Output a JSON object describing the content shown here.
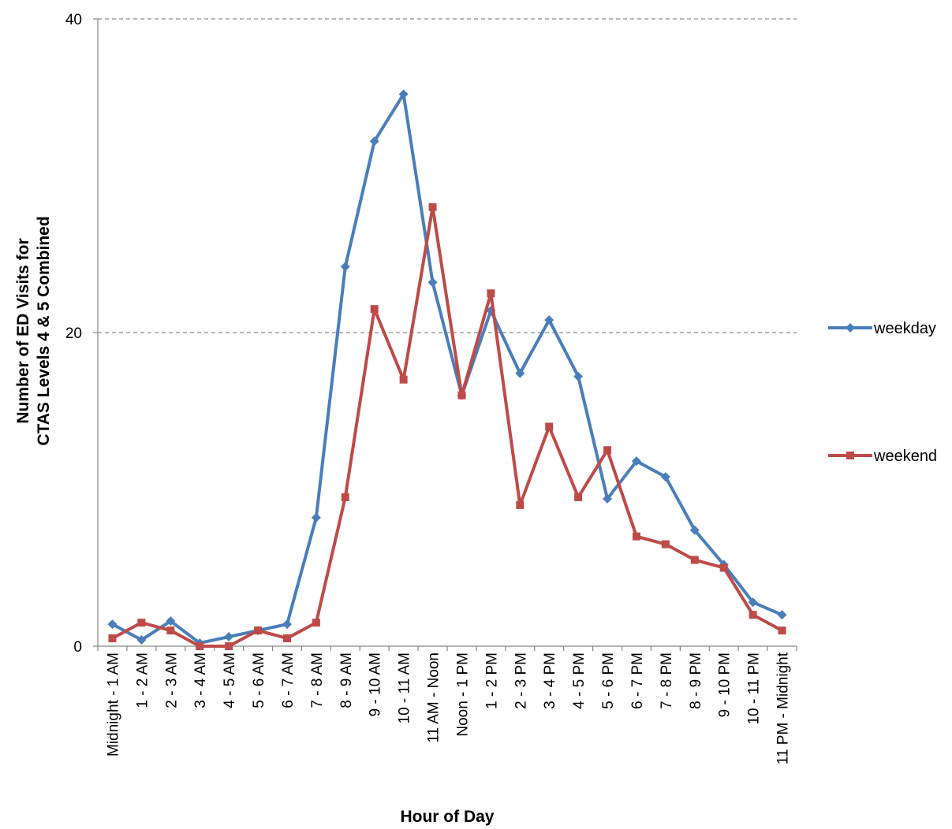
{
  "chart_data": {
    "type": "line",
    "title": "",
    "xlabel": "Hour of Day",
    "ylabel_lines": [
      "Number of ED Visits for",
      "CTAS Levels 4 & 5 Combined"
    ],
    "ylim": [
      0,
      40
    ],
    "yticks": [
      0,
      20,
      40
    ],
    "grid": true,
    "legend_position": "right",
    "categories": [
      "Midnight - 1 AM",
      "1 - 2 AM",
      "2 - 3 AM",
      "3 - 4 AM",
      "4 - 5 AM",
      "5 - 6 AM",
      "6 - 7 AM",
      "7 - 8 AM",
      "8 - 9 AM",
      "9 - 10 AM",
      "10 - 11 AM",
      "11 AM - Noon",
      "Noon - 1 PM",
      "1 - 2 PM",
      "2 - 3 PM",
      "3 - 4 PM",
      "4 - 5 PM",
      "5 - 6 PM",
      "6 - 7 PM",
      "7 - 8 PM",
      "8 - 9 PM",
      "9 - 10 PM",
      "10 - 11 PM",
      "11 PM - Midnight"
    ],
    "series": [
      {
        "name": "weekday",
        "color": "#4a7ebb",
        "marker": "diamond",
        "values": [
          1.4,
          0.4,
          1.6,
          0.2,
          0.6,
          1.0,
          1.4,
          8.2,
          24.2,
          32.2,
          35.2,
          23.2,
          16.0,
          21.4,
          17.4,
          20.8,
          17.2,
          9.4,
          11.8,
          10.8,
          7.4,
          5.2,
          2.8,
          2.0
        ]
      },
      {
        "name": "weekend",
        "color": "#be4b48",
        "marker": "square",
        "values": [
          0.5,
          1.5,
          1.0,
          0.0,
          0.0,
          1.0,
          0.5,
          1.5,
          9.5,
          21.5,
          17.0,
          28.0,
          16.0,
          22.5,
          9.0,
          14.0,
          9.5,
          12.5,
          7.0,
          6.5,
          5.5,
          5.0,
          2.0,
          1.0
        ]
      }
    ]
  }
}
